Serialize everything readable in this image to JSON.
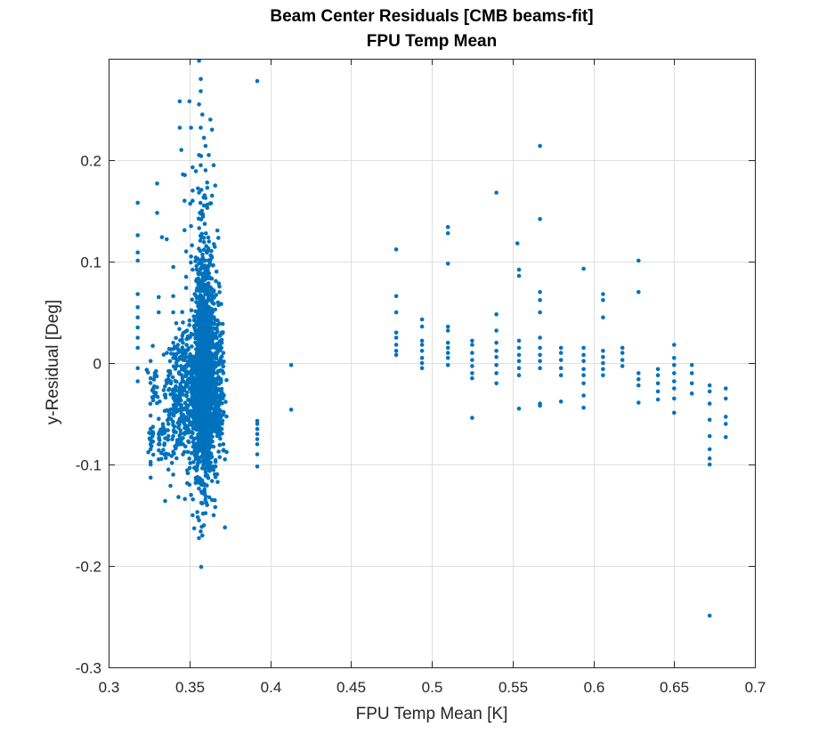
{
  "chart_data": {
    "type": "scatter",
    "title": "Beam Center Residuals [CMB beams-fit]",
    "subtitle": "FPU Temp Mean",
    "xlabel": "FPU Temp Mean [K]",
    "ylabel": "y-Residual [Deg]",
    "xlim": [
      0.3,
      0.7
    ],
    "ylim": [
      -0.3,
      0.3
    ],
    "xticks": [
      0.3,
      0.35,
      0.4,
      0.45,
      0.5,
      0.55,
      0.6,
      0.65,
      0.7
    ],
    "xtick_labels": [
      "0.3",
      "0.35",
      "0.4",
      "0.45",
      "0.5",
      "0.55",
      "0.6",
      "0.65",
      "0.7"
    ],
    "yticks": [
      -0.3,
      -0.2,
      -0.1,
      0,
      0.1,
      0.2
    ],
    "ytick_labels": [
      "-0.3",
      "-0.2",
      "-0.1",
      "0",
      "0.1",
      "0.2"
    ],
    "grid": true,
    "marker_color": "#0072BD",
    "points": [
      [
        0.318,
        0.158
      ],
      [
        0.318,
        0.126
      ],
      [
        0.318,
        0.109
      ],
      [
        0.318,
        0.101
      ],
      [
        0.318,
        0.068
      ],
      [
        0.318,
        0.055
      ],
      [
        0.318,
        0.045
      ],
      [
        0.318,
        0.035
      ],
      [
        0.318,
        0.025
      ],
      [
        0.318,
        0.015
      ],
      [
        0.318,
        -0.005
      ],
      [
        0.318,
        -0.018
      ],
      [
        0.326,
        -0.065
      ],
      [
        0.326,
        -0.075
      ],
      [
        0.326,
        -0.085
      ],
      [
        0.326,
        -0.1
      ],
      [
        0.326,
        -0.113
      ],
      [
        0.326,
        0.002
      ],
      [
        0.326,
        -0.015
      ],
      [
        0.33,
        0.177
      ],
      [
        0.33,
        0.148
      ],
      [
        0.331,
        0.065
      ],
      [
        0.331,
        0.05
      ],
      [
        0.331,
        -0.055
      ],
      [
        0.331,
        -0.07
      ],
      [
        0.331,
        -0.08
      ],
      [
        0.331,
        -0.095
      ],
      [
        0.333,
        0.124
      ],
      [
        0.335,
        -0.136
      ],
      [
        0.336,
        0.122
      ],
      [
        0.336,
        -0.02
      ],
      [
        0.337,
        -0.06
      ],
      [
        0.337,
        -0.072
      ],
      [
        0.337,
        -0.09
      ],
      [
        0.337,
        -0.105
      ],
      [
        0.34,
        0.066
      ],
      [
        0.34,
        0.05
      ],
      [
        0.34,
        0.02
      ],
      [
        0.34,
        0.005
      ],
      [
        0.34,
        -0.03
      ],
      [
        0.34,
        -0.045
      ],
      [
        0.34,
        -0.11
      ],
      [
        0.344,
        0.258
      ],
      [
        0.344,
        0.232
      ],
      [
        0.345,
        0.21
      ],
      [
        0.346,
        0.186
      ],
      [
        0.347,
        0.16
      ],
      [
        0.347,
        0.131
      ],
      [
        0.348,
        0.11
      ],
      [
        0.348,
        0.085
      ],
      [
        0.348,
        0.074
      ],
      [
        0.346,
        0.04
      ],
      [
        0.346,
        0.02
      ],
      [
        0.345,
        -0.05
      ],
      [
        0.346,
        -0.08
      ],
      [
        0.346,
        -0.09
      ],
      [
        0.35,
        0.258
      ],
      [
        0.351,
        0.232
      ],
      [
        0.352,
        0.193
      ],
      [
        0.352,
        0.17
      ],
      [
        0.352,
        0.16
      ],
      [
        0.351,
        0.135
      ],
      [
        0.351,
        0.105
      ],
      [
        0.352,
        0.092
      ],
      [
        0.35,
        -0.12
      ],
      [
        0.351,
        -0.13
      ],
      [
        0.352,
        -0.15
      ],
      [
        0.353,
        -0.163
      ],
      [
        0.356,
        0.298
      ],
      [
        0.357,
        0.28
      ],
      [
        0.357,
        0.268
      ],
      [
        0.356,
        0.255
      ],
      [
        0.358,
        0.245
      ],
      [
        0.357,
        0.232
      ],
      [
        0.359,
        0.222
      ],
      [
        0.36,
        0.214
      ],
      [
        0.356,
        0.205
      ],
      [
        0.357,
        0.195
      ],
      [
        0.36,
        0.19
      ],
      [
        0.361,
        0.178
      ],
      [
        0.356,
        0.168
      ],
      [
        0.357,
        -0.166
      ],
      [
        0.358,
        -0.17
      ],
      [
        0.359,
        -0.16
      ],
      [
        0.356,
        -0.155
      ],
      [
        0.36,
        -0.148
      ],
      [
        0.361,
        -0.14
      ],
      [
        0.363,
        0.24
      ],
      [
        0.364,
        0.23
      ],
      [
        0.362,
        0.205
      ],
      [
        0.365,
        0.195
      ],
      [
        0.366,
        0.175
      ],
      [
        0.364,
        0.165
      ],
      [
        0.365,
        -0.15
      ],
      [
        0.366,
        -0.142
      ],
      [
        0.364,
        -0.135
      ],
      [
        0.37,
        0.03
      ],
      [
        0.37,
        0.02
      ],
      [
        0.371,
        0.01
      ],
      [
        0.37,
        0.0
      ],
      [
        0.371,
        -0.01
      ],
      [
        0.37,
        -0.03
      ],
      [
        0.371,
        -0.05
      ],
      [
        0.37,
        -0.065
      ],
      [
        0.371,
        -0.08
      ],
      [
        0.372,
        -0.095
      ],
      [
        0.372,
        -0.162
      ],
      [
        0.392,
        0.278
      ],
      [
        0.392,
        -0.057
      ],
      [
        0.392,
        -0.06
      ],
      [
        0.392,
        -0.065
      ],
      [
        0.392,
        -0.07
      ],
      [
        0.392,
        -0.075
      ],
      [
        0.392,
        -0.08
      ],
      [
        0.392,
        -0.09
      ],
      [
        0.392,
        -0.102
      ],
      [
        0.413,
        -0.002
      ],
      [
        0.413,
        -0.046
      ],
      [
        0.478,
        0.112
      ],
      [
        0.478,
        0.066
      ],
      [
        0.478,
        0.05
      ],
      [
        0.478,
        0.03
      ],
      [
        0.478,
        0.025
      ],
      [
        0.478,
        0.018
      ],
      [
        0.478,
        0.012
      ],
      [
        0.478,
        0.008
      ],
      [
        0.494,
        0.043
      ],
      [
        0.494,
        0.036
      ],
      [
        0.494,
        0.022
      ],
      [
        0.494,
        0.018
      ],
      [
        0.494,
        0.012
      ],
      [
        0.494,
        0.005
      ],
      [
        0.494,
        0.0
      ],
      [
        0.494,
        -0.005
      ],
      [
        0.51,
        0.134
      ],
      [
        0.51,
        0.128
      ],
      [
        0.51,
        0.098
      ],
      [
        0.51,
        0.036
      ],
      [
        0.51,
        0.032
      ],
      [
        0.51,
        0.02
      ],
      [
        0.51,
        0.015
      ],
      [
        0.51,
        0.01
      ],
      [
        0.51,
        0.005
      ],
      [
        0.51,
        -0.002
      ],
      [
        0.525,
        0.022
      ],
      [
        0.525,
        0.018
      ],
      [
        0.525,
        0.01
      ],
      [
        0.525,
        0.003
      ],
      [
        0.525,
        -0.003
      ],
      [
        0.525,
        -0.01
      ],
      [
        0.525,
        -0.015
      ],
      [
        0.525,
        -0.054
      ],
      [
        0.54,
        0.168
      ],
      [
        0.54,
        0.048
      ],
      [
        0.54,
        0.032
      ],
      [
        0.54,
        0.02
      ],
      [
        0.54,
        0.012
      ],
      [
        0.54,
        0.006
      ],
      [
        0.54,
        -0.002
      ],
      [
        0.54,
        -0.01
      ],
      [
        0.54,
        -0.02
      ],
      [
        0.553,
        0.118
      ],
      [
        0.554,
        0.092
      ],
      [
        0.554,
        0.086
      ],
      [
        0.554,
        0.022
      ],
      [
        0.554,
        0.015
      ],
      [
        0.554,
        0.008
      ],
      [
        0.554,
        0.002
      ],
      [
        0.554,
        -0.005
      ],
      [
        0.554,
        -0.012
      ],
      [
        0.554,
        -0.045
      ],
      [
        0.567,
        0.214
      ],
      [
        0.567,
        0.142
      ],
      [
        0.567,
        0.07
      ],
      [
        0.567,
        0.062
      ],
      [
        0.567,
        0.05
      ],
      [
        0.567,
        0.025
      ],
      [
        0.567,
        0.015
      ],
      [
        0.567,
        0.008
      ],
      [
        0.567,
        0.002
      ],
      [
        0.567,
        -0.005
      ],
      [
        0.567,
        -0.04
      ],
      [
        0.567,
        -0.042
      ],
      [
        0.58,
        0.015
      ],
      [
        0.58,
        0.01
      ],
      [
        0.58,
        0.003
      ],
      [
        0.58,
        -0.005
      ],
      [
        0.58,
        -0.012
      ],
      [
        0.58,
        -0.038
      ],
      [
        0.594,
        0.093
      ],
      [
        0.594,
        0.015
      ],
      [
        0.594,
        0.008
      ],
      [
        0.594,
        0.002
      ],
      [
        0.594,
        -0.006
      ],
      [
        0.594,
        -0.012
      ],
      [
        0.594,
        -0.02
      ],
      [
        0.594,
        -0.032
      ],
      [
        0.594,
        -0.044
      ],
      [
        0.606,
        0.068
      ],
      [
        0.606,
        0.062
      ],
      [
        0.606,
        0.045
      ],
      [
        0.606,
        0.012
      ],
      [
        0.606,
        0.006
      ],
      [
        0.606,
        0.0
      ],
      [
        0.606,
        -0.006
      ],
      [
        0.606,
        -0.012
      ],
      [
        0.618,
        0.015
      ],
      [
        0.618,
        0.01
      ],
      [
        0.618,
        0.003
      ],
      [
        0.618,
        -0.003
      ],
      [
        0.628,
        0.101
      ],
      [
        0.628,
        0.07
      ],
      [
        0.628,
        -0.01
      ],
      [
        0.628,
        -0.016
      ],
      [
        0.628,
        -0.022
      ],
      [
        0.628,
        -0.039
      ],
      [
        0.64,
        -0.006
      ],
      [
        0.64,
        -0.012
      ],
      [
        0.64,
        -0.02
      ],
      [
        0.64,
        -0.028
      ],
      [
        0.64,
        -0.036
      ],
      [
        0.65,
        0.018
      ],
      [
        0.65,
        0.005
      ],
      [
        0.65,
        -0.002
      ],
      [
        0.65,
        -0.01
      ],
      [
        0.65,
        -0.018
      ],
      [
        0.65,
        -0.025
      ],
      [
        0.65,
        -0.035
      ],
      [
        0.65,
        -0.049
      ],
      [
        0.661,
        -0.002
      ],
      [
        0.661,
        -0.01
      ],
      [
        0.661,
        -0.02
      ],
      [
        0.661,
        -0.03
      ],
      [
        0.672,
        -0.022
      ],
      [
        0.672,
        -0.028
      ],
      [
        0.672,
        -0.04
      ],
      [
        0.672,
        -0.056
      ],
      [
        0.672,
        -0.072
      ],
      [
        0.672,
        -0.085
      ],
      [
        0.672,
        -0.094
      ],
      [
        0.672,
        -0.1
      ],
      [
        0.672,
        -0.249
      ],
      [
        0.682,
        -0.025
      ],
      [
        0.682,
        -0.035
      ],
      [
        0.682,
        -0.053
      ],
      [
        0.682,
        -0.06
      ],
      [
        0.682,
        -0.073
      ]
    ],
    "clusters": [
      {
        "x_mean": 0.359,
        "x_sd": 0.003,
        "y_mean": -0.02,
        "y_sd": 0.045,
        "count": 1800
      },
      {
        "x_mean": 0.359,
        "x_sd": 0.0035,
        "y_mean": 0.08,
        "y_sd": 0.05,
        "count": 200
      },
      {
        "x_mean": 0.348,
        "x_sd": 0.004,
        "y_mean": -0.03,
        "y_sd": 0.035,
        "count": 220
      },
      {
        "x_mean": 0.367,
        "x_sd": 0.0025,
        "y_mean": -0.02,
        "y_sd": 0.04,
        "count": 220
      },
      {
        "x_mean": 0.343,
        "x_sd": 0.0025,
        "y_mean": -0.04,
        "y_sd": 0.03,
        "count": 70
      },
      {
        "x_mean": 0.337,
        "x_sd": 0.002,
        "y_mean": -0.03,
        "y_sd": 0.03,
        "count": 40
      },
      {
        "x_mean": 0.328,
        "x_sd": 0.0015,
        "y_mean": -0.02,
        "y_sd": 0.015,
        "count": 25
      },
      {
        "x_mean": 0.333,
        "x_sd": 0.0015,
        "y_mean": -0.075,
        "y_sd": 0.01,
        "count": 25
      },
      {
        "x_mean": 0.326,
        "x_sd": 0.001,
        "y_mean": -0.075,
        "y_sd": 0.012,
        "count": 15
      }
    ]
  }
}
